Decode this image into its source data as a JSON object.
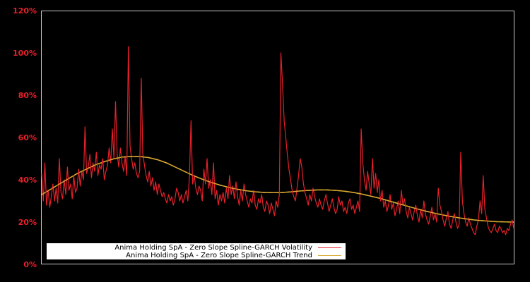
{
  "chart_data": {
    "type": "line",
    "title": "",
    "xlabel": "",
    "ylabel": "",
    "ylim": [
      0,
      120
    ],
    "yticks": [
      0,
      20,
      40,
      60,
      80,
      100,
      120
    ],
    "ytick_labels": [
      "0%",
      "20%",
      "40%",
      "60%",
      "80%",
      "100%",
      "120%"
    ],
    "grid": false,
    "legend_position": "lower left",
    "background": "#000000",
    "frame_color": "#c8c8c8",
    "tick_label_color": "#e8202a",
    "series": [
      {
        "name": "Anima Holding SpA - Zero Slope Spline-GARCH Volatility",
        "color": "#e8202a",
        "values": [
          43,
          30,
          48,
          28,
          35,
          27,
          32,
          38,
          30,
          36,
          29,
          50,
          34,
          31,
          40,
          33,
          46,
          35,
          38,
          31,
          42,
          34,
          36,
          45,
          37,
          44,
          40,
          65,
          43,
          46,
          52,
          41,
          48,
          44,
          53,
          42,
          47,
          45,
          50,
          40,
          44,
          47,
          55,
          48,
          64,
          50,
          77,
          52,
          46,
          55,
          48,
          44,
          51,
          42,
          103,
          56,
          50,
          45,
          48,
          43,
          41,
          44,
          88,
          52,
          47,
          42,
          39,
          44,
          37,
          41,
          35,
          39,
          33,
          38,
          35,
          32,
          34,
          31,
          29,
          33,
          30,
          32,
          28,
          31,
          36,
          34,
          30,
          33,
          29,
          32,
          35,
          30,
          41,
          68,
          38,
          42,
          36,
          33,
          37,
          35,
          30,
          45,
          38,
          50,
          36,
          40,
          33,
          48,
          31,
          35,
          28,
          33,
          30,
          34,
          29,
          36,
          31,
          42,
          33,
          37,
          31,
          39,
          32,
          28,
          35,
          30,
          38,
          33,
          30,
          27,
          31,
          29,
          35,
          28,
          26,
          31,
          29,
          33,
          27,
          25,
          30,
          28,
          24,
          29,
          26,
          23,
          30,
          27,
          33,
          100,
          85,
          68,
          60,
          52,
          45,
          40,
          35,
          32,
          30,
          36,
          42,
          50,
          46,
          38,
          34,
          31,
          28,
          33,
          30,
          36,
          32,
          29,
          27,
          31,
          28,
          26,
          30,
          33,
          29,
          25,
          28,
          31,
          27,
          24,
          26,
          32,
          28,
          30,
          25,
          27,
          24,
          29,
          31,
          26,
          28,
          24,
          27,
          30,
          25,
          64,
          48,
          40,
          35,
          44,
          38,
          33,
          50,
          36,
          43,
          34,
          40,
          30,
          35,
          27,
          30,
          25,
          28,
          33,
          26,
          29,
          23,
          26,
          30,
          24,
          35,
          28,
          31,
          25,
          22,
          27,
          24,
          21,
          25,
          28,
          23,
          20,
          26,
          22,
          30,
          24,
          21,
          19,
          23,
          27,
          21,
          24,
          20,
          36,
          28,
          25,
          21,
          18,
          22,
          25,
          19,
          17,
          21,
          24,
          20,
          17,
          19,
          53,
          30,
          24,
          20,
          18,
          22,
          19,
          17,
          15,
          14,
          18,
          21,
          30,
          24,
          42,
          26,
          22,
          18,
          16,
          15,
          17,
          19,
          16,
          15,
          18,
          17,
          15,
          16,
          14,
          17,
          16,
          19,
          21,
          17
        ]
      },
      {
        "name": "Anima Holding SpA - Zero Slope Spline-GARCH Trend",
        "color": "#d9a830",
        "values": [
          33,
          35.5,
          38,
          40.5,
          43,
          45,
          47,
          48.5,
          49.8,
          50.7,
          51,
          51,
          50.5,
          49.5,
          48,
          46,
          44,
          42,
          40.3,
          38.8,
          37.5,
          36.4,
          35.5,
          34.8,
          34.3,
          34,
          33.9,
          34,
          34.3,
          34.7,
          35,
          35.2,
          35.2,
          35,
          34.6,
          34,
          33.2,
          32.2,
          31.2,
          30,
          28.8,
          27.6,
          26.4,
          25.3,
          24.3,
          23.4,
          22.6,
          21.9,
          21.3,
          20.8,
          20.5,
          20.2,
          20.1,
          20
        ]
      }
    ]
  },
  "legend": {
    "items": [
      {
        "label": "Anima Holding SpA - Zero Slope Spline-GARCH Volatility",
        "color": "#e8202a"
      },
      {
        "label": "Anima Holding SpA - Zero Slope Spline-GARCH Trend",
        "color": "#d9a830"
      }
    ]
  }
}
